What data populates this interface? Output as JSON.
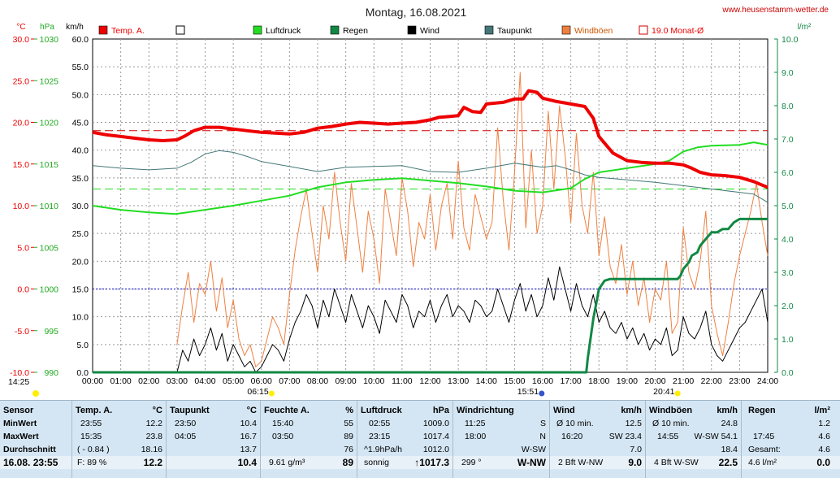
{
  "page": {
    "title": "Montag, 16.08.2021",
    "site": "www.heusenstamm-wetter.de",
    "colors": {
      "background": "#ffffff",
      "stats_bg": "#d4e6f4",
      "temp": "#ee0000",
      "pressure": "#22dd22",
      "rain": "#118844",
      "wind": "#000000",
      "dewpoint": "#447777",
      "gust": "#f08040",
      "month_avg": "#cc0000"
    }
  },
  "chart_data": {
    "type": "line",
    "title": "Montag, 16.08.2021",
    "axes": {
      "temp": {
        "unit": "°C",
        "range": [
          -10,
          30
        ],
        "ticks": [
          "30.0",
          "25.0",
          "20.0",
          "15.0",
          "10.0",
          "5.0",
          "0.0",
          "-5.0",
          "-10.0"
        ]
      },
      "pressure": {
        "unit": "hPa",
        "range": [
          990,
          1030
        ],
        "ticks": [
          "1030",
          "1025",
          "1020",
          "1015",
          "1010",
          "1005",
          "1000",
          "995",
          "990"
        ]
      },
      "wind": {
        "unit": "km/h",
        "range": [
          0,
          60
        ],
        "ticks": [
          "60.0",
          "55.0",
          "50.0",
          "45.0",
          "40.0",
          "35.0",
          "30.0",
          "25.0",
          "20.0",
          "15.0",
          "10.0",
          "5.0",
          "0.0"
        ]
      },
      "rain": {
        "unit": "l/m²",
        "range": [
          0,
          10
        ],
        "ticks": [
          "10.0",
          "9.0",
          "8.0",
          "7.0",
          "6.0",
          "5.0",
          "4.0",
          "3.0",
          "2.0",
          "1.0",
          "0.0"
        ]
      },
      "x": {
        "unit": "h",
        "range": [
          0,
          24
        ],
        "ticks": [
          "00:00",
          "01:00",
          "02:00",
          "03:00",
          "04:00",
          "05:00",
          "06:00",
          "07:00",
          "08:00",
          "09:00",
          "10:00",
          "11:00",
          "12:00",
          "13:00",
          "14:00",
          "15:00",
          "16:00",
          "17:00",
          "18:00",
          "19:00",
          "20:00",
          "21:00",
          "22:00",
          "23:00",
          "24:00"
        ]
      }
    },
    "grid": true,
    "legend": [
      {
        "label": "Temp. A.",
        "color": "#ee0000",
        "style": "filled"
      },
      {
        "label": "",
        "color": "#ffffff",
        "style": "empty"
      },
      {
        "label": "Luftdruck",
        "color": "#22dd22",
        "style": "filled"
      },
      {
        "label": "Regen",
        "color": "#118844",
        "style": "filled"
      },
      {
        "label": "Wind",
        "color": "#000000",
        "style": "filled"
      },
      {
        "label": "Taupunkt",
        "color": "#447777",
        "style": "filled"
      },
      {
        "label": "Windböen",
        "color": "#f08040",
        "style": "filled"
      },
      {
        "label": "19.0 Monat-Ø",
        "color": "#cc0000",
        "style": "outline"
      }
    ],
    "reference_lines": [
      {
        "name": "19.0 Monat-Ø",
        "axis": "temp",
        "value": 19.0,
        "color": "#cc0000"
      },
      {
        "axis": "pressure",
        "value": 1012.0,
        "color": "#22dd22"
      },
      {
        "axis": "temp",
        "value": 0,
        "color": "#0000cc"
      }
    ],
    "sun_markers": {
      "left_label": "14:25",
      "sunrise": "06:15",
      "sunset": "20:41",
      "mark": "15:51"
    },
    "series": [
      {
        "name": "Temp. A.",
        "axis": "temp",
        "color": "#ee0000",
        "width": 4,
        "x": [
          0,
          0.5,
          1,
          1.5,
          2,
          2.5,
          3,
          3.3,
          3.6,
          4,
          4.5,
          5,
          5.5,
          6,
          6.5,
          7,
          7.5,
          8,
          8.5,
          9,
          9.5,
          10,
          10.5,
          11,
          11.5,
          12,
          12.3,
          12.7,
          13,
          13.2,
          13.5,
          13.8,
          14,
          14.3,
          14.6,
          15,
          15.3,
          15.5,
          15.8,
          16,
          16.5,
          17,
          17.5,
          17.8,
          18,
          18.5,
          19,
          19.5,
          20,
          20.5,
          21,
          21.3,
          21.6,
          22,
          22.5,
          23,
          23.5,
          24
        ],
        "y": [
          18.8,
          18.5,
          18.3,
          18.1,
          17.9,
          17.8,
          17.9,
          18.4,
          19.0,
          19.4,
          19.4,
          19.2,
          19.0,
          18.8,
          18.7,
          18.6,
          18.8,
          19.3,
          19.5,
          19.8,
          20.0,
          19.9,
          19.8,
          19.9,
          20.0,
          20.3,
          20.6,
          20.7,
          20.8,
          21.8,
          21.3,
          21.2,
          22.2,
          22.3,
          22.4,
          22.8,
          22.8,
          23.8,
          23.6,
          22.9,
          22.5,
          22.2,
          21.9,
          20.5,
          18.3,
          16.3,
          15.4,
          15.2,
          15.1,
          15.1,
          14.9,
          14.5,
          14.0,
          13.7,
          13.6,
          13.4,
          12.9,
          12.2
        ]
      },
      {
        "name": "Luftdruck",
        "axis": "pressure",
        "color": "#22dd22",
        "width": 2,
        "x": [
          0,
          1,
          2,
          2.95,
          4,
          5,
          6,
          7,
          8,
          9,
          10,
          11,
          12,
          13,
          14,
          15,
          16,
          17,
          17.5,
          18,
          19,
          20,
          20.5,
          21,
          21.5,
          22,
          23,
          23.5,
          24
        ],
        "y": [
          1010.0,
          1009.5,
          1009.2,
          1009.0,
          1009.5,
          1010.0,
          1010.6,
          1011.2,
          1012.2,
          1012.8,
          1013.1,
          1013.3,
          1013.0,
          1012.7,
          1012.3,
          1011.8,
          1011.6,
          1012.1,
          1013.2,
          1014.0,
          1014.5,
          1015.0,
          1015.4,
          1016.5,
          1017.0,
          1017.2,
          1017.3,
          1017.6,
          1017.3
        ]
      },
      {
        "name": "Taupunkt",
        "axis": "temp",
        "color": "#447777",
        "width": 1,
        "x": [
          0,
          1,
          2,
          3,
          3.5,
          4,
          4.5,
          5,
          5.5,
          6,
          7,
          8,
          9,
          10,
          11,
          12,
          13,
          14,
          15,
          16,
          16.5,
          17,
          17.5,
          18,
          19,
          20,
          21,
          22,
          23,
          23.5,
          24
        ],
        "y": [
          14.8,
          14.5,
          14.3,
          14.5,
          15.2,
          16.2,
          16.6,
          16.4,
          15.9,
          15.3,
          14.7,
          14.1,
          14.6,
          14.7,
          14.8,
          14.1,
          14.0,
          14.5,
          15.1,
          14.6,
          14.8,
          14.3,
          13.7,
          13.4,
          13.1,
          12.8,
          12.4,
          12.0,
          11.6,
          11.4,
          10.4
        ]
      },
      {
        "name": "Wind",
        "axis": "wind",
        "color": "#000000",
        "width": 1,
        "x": [
          3,
          3.2,
          3.4,
          3.6,
          3.8,
          4,
          4.2,
          4.4,
          4.6,
          4.8,
          5,
          5.2,
          5.4,
          5.6,
          5.8,
          6,
          6.2,
          6.4,
          6.6,
          6.8,
          7,
          7.2,
          7.4,
          7.6,
          7.8,
          8,
          8.2,
          8.4,
          8.6,
          8.8,
          9,
          9.2,
          9.4,
          9.6,
          9.8,
          10,
          10.2,
          10.4,
          10.6,
          10.8,
          11,
          11.2,
          11.4,
          11.6,
          11.8,
          12,
          12.2,
          12.4,
          12.6,
          12.8,
          13,
          13.2,
          13.4,
          13.6,
          13.8,
          14,
          14.2,
          14.4,
          14.6,
          14.8,
          15,
          15.2,
          15.4,
          15.6,
          15.8,
          16,
          16.2,
          16.4,
          16.6,
          16.8,
          17,
          17.2,
          17.4,
          17.6,
          17.8,
          18,
          18.2,
          18.4,
          18.6,
          18.8,
          19,
          19.2,
          19.4,
          19.6,
          19.8,
          20,
          20.2,
          20.4,
          20.6,
          20.8,
          21,
          21.2,
          21.4,
          21.6,
          21.8,
          22,
          22.2,
          22.4,
          22.6,
          22.8,
          23,
          23.2,
          23.4,
          23.6,
          23.8,
          24
        ],
        "y": [
          0,
          4,
          2,
          6,
          3,
          5,
          8,
          4,
          7,
          2,
          5,
          3,
          1,
          2,
          0,
          1,
          3,
          5,
          4,
          2,
          6,
          9,
          11,
          14,
          12,
          8,
          13,
          10,
          15,
          12,
          9,
          14,
          11,
          8,
          12,
          10,
          7,
          13,
          11,
          9,
          14,
          12,
          8,
          11,
          10,
          13,
          9,
          12,
          14,
          10,
          12,
          11,
          9,
          13,
          12,
          10,
          11,
          15,
          12,
          9,
          13,
          16,
          11,
          14,
          10,
          12,
          17,
          13,
          19,
          15,
          11,
          16,
          12,
          10,
          14,
          9,
          11,
          8,
          7,
          9,
          6,
          8,
          5,
          7,
          4,
          6,
          5,
          8,
          3,
          4,
          10,
          7,
          6,
          8,
          11,
          5,
          3,
          2,
          4,
          6,
          8,
          9,
          11,
          13,
          15,
          9
        ]
      },
      {
        "name": "Windböen",
        "axis": "wind",
        "color": "#f08040",
        "width": 1,
        "x": [
          3,
          3.2,
          3.4,
          3.6,
          3.8,
          4,
          4.2,
          4.4,
          4.6,
          4.8,
          5,
          5.2,
          5.4,
          5.6,
          5.8,
          6,
          6.2,
          6.4,
          6.6,
          6.8,
          7,
          7.2,
          7.4,
          7.6,
          7.8,
          8,
          8.2,
          8.4,
          8.6,
          8.8,
          9,
          9.2,
          9.4,
          9.6,
          9.8,
          10,
          10.2,
          10.4,
          10.6,
          10.8,
          11,
          11.2,
          11.4,
          11.6,
          11.8,
          12,
          12.2,
          12.4,
          12.6,
          12.8,
          13,
          13.2,
          13.4,
          13.6,
          13.8,
          14,
          14.2,
          14.4,
          14.6,
          14.8,
          15,
          15.2,
          15.4,
          15.6,
          15.8,
          16,
          16.2,
          16.4,
          16.6,
          16.8,
          17,
          17.2,
          17.4,
          17.6,
          17.8,
          18,
          18.2,
          18.4,
          18.6,
          18.8,
          19,
          19.2,
          19.4,
          19.6,
          19.8,
          20,
          20.2,
          20.4,
          20.6,
          20.8,
          21,
          21.2,
          21.4,
          21.6,
          21.8,
          22,
          22.2,
          22.4,
          22.6,
          22.8,
          23,
          23.2,
          23.4,
          23.6,
          23.8,
          24
        ],
        "y": [
          5,
          12,
          18,
          9,
          16,
          14,
          20,
          11,
          17,
          8,
          13,
          6,
          3,
          5,
          1,
          2,
          6,
          10,
          8,
          5,
          14,
          22,
          28,
          33,
          25,
          18,
          30,
          24,
          36,
          27,
          20,
          34,
          26,
          18,
          29,
          24,
          16,
          33,
          27,
          21,
          35,
          29,
          19,
          27,
          24,
          32,
          22,
          30,
          34,
          24,
          38,
          26,
          22,
          32,
          28,
          24,
          27,
          44,
          31,
          22,
          36,
          54,
          26,
          40,
          25,
          30,
          47,
          33,
          48,
          39,
          27,
          43,
          30,
          25,
          36,
          21,
          28,
          19,
          16,
          23,
          14,
          20,
          12,
          17,
          9,
          15,
          13,
          20,
          7,
          9,
          26,
          18,
          15,
          20,
          29,
          12,
          7,
          3,
          9,
          16,
          21,
          25,
          29,
          34,
          27,
          21
        ]
      },
      {
        "name": "Regen",
        "axis": "rain",
        "color": "#118844",
        "width": 3,
        "x": [
          0,
          17.55,
          17.6,
          17.8,
          18,
          18.2,
          18.4,
          19,
          20,
          20.8,
          20.9,
          21,
          21.2,
          21.3,
          21.5,
          21.6,
          21.8,
          22,
          22.2,
          22.4,
          22.6,
          22.8,
          23,
          24
        ],
        "y": [
          0,
          0,
          0.4,
          1.6,
          2.5,
          2.75,
          2.8,
          2.8,
          2.8,
          2.8,
          2.9,
          3.1,
          3.3,
          3.5,
          3.6,
          3.8,
          4.0,
          4.2,
          4.2,
          4.3,
          4.3,
          4.5,
          4.6,
          4.6
        ]
      }
    ]
  },
  "stats": {
    "sensor": {
      "header": "Sensor",
      "rows": [
        "MinWert",
        "MaxWert",
        "Durchschnitt"
      ],
      "date": "16.08. 23:55"
    },
    "temp": {
      "header": "Temp. A.",
      "unit": "°C",
      "min_time": "23:55",
      "min": "12.2",
      "max_time": "15:35",
      "max": "23.8",
      "avg_label": "( - 0.84 )",
      "avg": "18.16",
      "f_label": "F: 89 %",
      "current": "12.2"
    },
    "dew": {
      "header": "Taupunkt",
      "unit": "°C",
      "min_time": "23:50",
      "min": "10.4",
      "max_time": "04:05",
      "max": "16.7",
      "avg": "13.7",
      "current": "10.4"
    },
    "hum": {
      "header": "Feuchte A.",
      "unit": "%",
      "min_time": "15:40",
      "min": "55",
      "max_time": "03:50",
      "max": "89",
      "avg": "76",
      "abs": "9.61 g/m³",
      "current": "89"
    },
    "press": {
      "header": "Luftdruck",
      "unit": "hPa",
      "min_time": "02:55",
      "min": "1009.0",
      "max_time": "23:15",
      "max": "1017.4",
      "trend": "^1.9hPa/h",
      "avg": "1012.0",
      "state": "sonnig",
      "current": "↑1017.3"
    },
    "dir": {
      "header": "Windrichtung",
      "min_time": "11:25",
      "min": "S",
      "max_time": "18:00",
      "max": "N",
      "avg": "W-SW",
      "deg": "299 °",
      "current": "W-NW"
    },
    "wind": {
      "header": "Wind",
      "unit": "km/h",
      "r1a": "Ø 10 min.",
      "r1b": "12.5",
      "r2a": "16:20",
      "r2b": "SW 23.4",
      "avg": "7.0",
      "bft": "2 Bft W-NW",
      "current": "9.0"
    },
    "gust": {
      "header": "Windböen",
      "unit": "km/h",
      "r1a": "Ø 10 min.",
      "r1b": "24.8",
      "r2a": "14:55",
      "r2b": "W-SW 54.1",
      "avg": "18.4",
      "bft": "4 Bft W-SW",
      "current": "22.5"
    },
    "rain": {
      "header": "Regen",
      "unit": "l/m²",
      "r1b": "1.2",
      "r2a": "17:45",
      "r2b": "4.6",
      "ges_label": "Gesamt:",
      "ges": "4.6",
      "cur_label": "4.6 l/m²",
      "current": "0.0"
    }
  }
}
